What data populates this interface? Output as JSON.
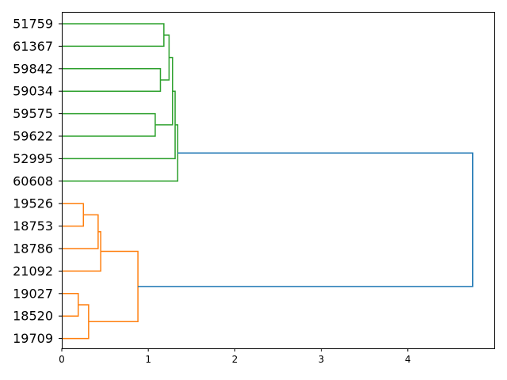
{
  "chart_data": {
    "type": "dendrogram",
    "orientation": "right",
    "xlim": [
      0,
      5.0
    ],
    "x_ticks": [
      0,
      1,
      2,
      3,
      4
    ],
    "x_tick_labels": [
      "0",
      "1",
      "2",
      "3",
      "4"
    ],
    "grid": false,
    "leaves": [
      "51759",
      "61367",
      "59842",
      "59034",
      "59575",
      "59622",
      "52995",
      "60608",
      "19526",
      "18753",
      "18786",
      "21092",
      "19027",
      "18520",
      "19709"
    ],
    "colors": {
      "cluster_green": "#2ca02c",
      "cluster_orange": "#ff7f0e",
      "root_link": "#1f77b4"
    },
    "merges": [
      {
        "id": "m1",
        "left": "51759",
        "right": "61367",
        "height": 1.18,
        "color": "cluster_green"
      },
      {
        "id": "m2",
        "left": "59842",
        "right": "59034",
        "height": 1.14,
        "color": "cluster_green"
      },
      {
        "id": "m3",
        "left": "m1",
        "right": "m2",
        "height": 1.24,
        "color": "cluster_green"
      },
      {
        "id": "m4",
        "left": "59575",
        "right": "59622",
        "height": 1.08,
        "color": "cluster_green"
      },
      {
        "id": "m5",
        "left": "m3",
        "right": "m4",
        "height": 1.28,
        "color": "cluster_green"
      },
      {
        "id": "m6",
        "left": "m5",
        "right": "52995",
        "height": 1.31,
        "color": "cluster_green"
      },
      {
        "id": "m7",
        "left": "m6",
        "right": "60608",
        "height": 1.34,
        "color": "cluster_green"
      },
      {
        "id": "m8",
        "left": "19526",
        "right": "18753",
        "height": 0.25,
        "color": "cluster_orange"
      },
      {
        "id": "m9",
        "left": "m8",
        "right": "18786",
        "height": 0.42,
        "color": "cluster_orange"
      },
      {
        "id": "m10",
        "left": "m9",
        "right": "21092",
        "height": 0.45,
        "color": "cluster_orange"
      },
      {
        "id": "m11",
        "left": "19027",
        "right": "18520",
        "height": 0.19,
        "color": "cluster_orange"
      },
      {
        "id": "m12",
        "left": "m11",
        "right": "19709",
        "height": 0.31,
        "color": "cluster_orange"
      },
      {
        "id": "m13",
        "left": "m10",
        "right": "m12",
        "height": 0.88,
        "color": "cluster_orange"
      },
      {
        "id": "m14",
        "left": "m7",
        "right": "m13",
        "height": 4.75,
        "color": "root_link"
      }
    ]
  }
}
